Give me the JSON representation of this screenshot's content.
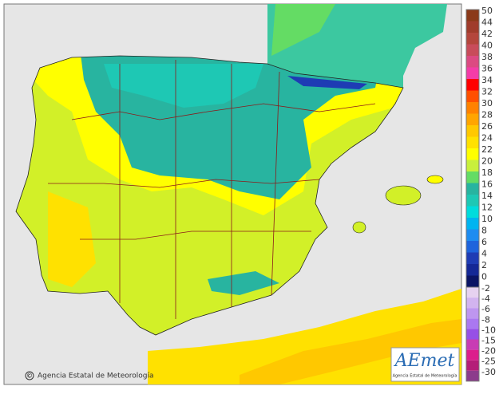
{
  "credit": {
    "symbol": "©",
    "text": "Agencia Estatal de Meteorología"
  },
  "logo": {
    "name": "AEmet",
    "subtitle": "Agencia Estatal de Meteorología"
  },
  "legend": {
    "warm": [
      {
        "value": 50,
        "color": "#8b3a1a"
      },
      {
        "value": 44,
        "color": "#a03c2c"
      },
      {
        "value": 42,
        "color": "#b4463c"
      },
      {
        "value": 40,
        "color": "#c84c5a"
      },
      {
        "value": 38,
        "color": "#dc4a82"
      },
      {
        "value": 36,
        "color": "#f43ca8"
      },
      {
        "value": 34,
        "color": "#ff0000"
      },
      {
        "value": 32,
        "color": "#ff5000"
      },
      {
        "value": 30,
        "color": "#ff8200"
      },
      {
        "value": 28,
        "color": "#ffa500"
      },
      {
        "value": 26,
        "color": "#ffc800"
      },
      {
        "value": 24,
        "color": "#ffe100"
      },
      {
        "value": 22,
        "color": "#ffff00"
      },
      {
        "value": 20,
        "color": "#c8f03c"
      },
      {
        "value": 18,
        "color": "#64dc64"
      },
      {
        "value": 16,
        "color": "#28b4a0"
      },
      {
        "value": 14,
        "color": "#1ec8b4"
      },
      {
        "value": 12,
        "color": "#00dcdc"
      },
      {
        "value": 10,
        "color": "#00b4f0"
      },
      {
        "value": 8,
        "color": "#1e8cf0"
      },
      {
        "value": 6,
        "color": "#1e64dc"
      },
      {
        "value": 4,
        "color": "#1e3cb4"
      },
      {
        "value": 2,
        "color": "#142896"
      },
      {
        "value": 0,
        "color": "#0a1464"
      }
    ],
    "cold": [
      {
        "value": -2,
        "color": "#e6d2f0"
      },
      {
        "value": -4,
        "color": "#d2b4f0"
      },
      {
        "value": -6,
        "color": "#be96f0"
      },
      {
        "value": -8,
        "color": "#aa78f0"
      },
      {
        "value": -10,
        "color": "#9650e6"
      },
      {
        "value": -15,
        "color": "#c83cb4"
      },
      {
        "value": -20,
        "color": "#dc1e8c"
      },
      {
        "value": -25,
        "color": "#b41e78"
      },
      {
        "value": -30,
        "color": "#8c3c8c"
      }
    ]
  }
}
